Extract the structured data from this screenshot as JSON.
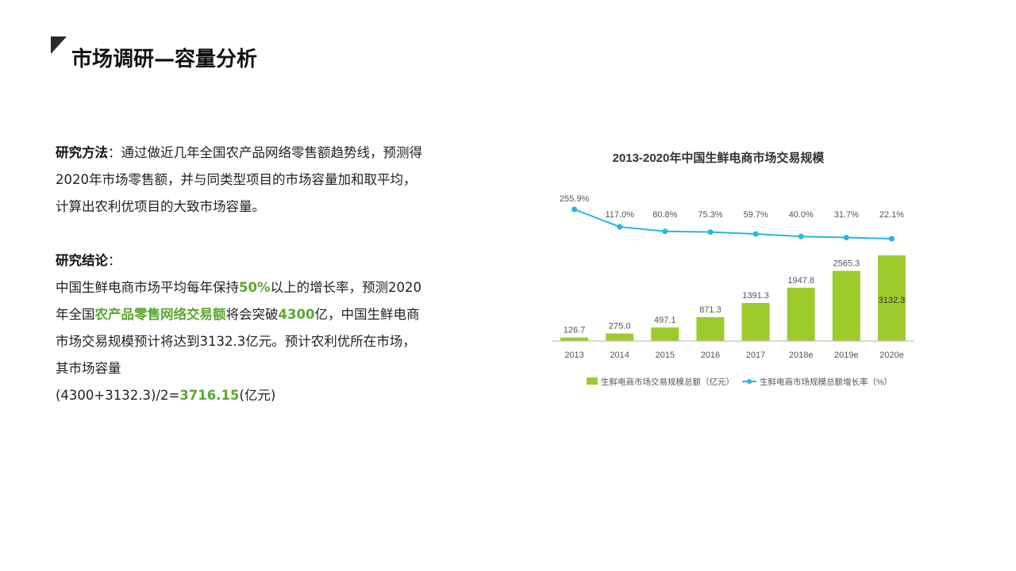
{
  "page": {
    "title": "市场调研—容量分析"
  },
  "method": {
    "label": "研究方法",
    "sep": "：",
    "text": "通过做近几年全国农产品网络零售额趋势线，预测得2020年市场零售额，并与同类型项目的市场容量加和取平均，计算出农利优项目的大致市场容量。"
  },
  "conclusion": {
    "label": "研究结论",
    "sep": "：",
    "t1": "中国生鲜电商市场平均每年保持",
    "h1": "50%",
    "t2": "以上的增长率，预测2020年全国",
    "h2": "农产品零售网络交易额",
    "t3": "将会突破",
    "h3": "4300",
    "t4": "亿，中国生鲜电商市场交易规模预计将达到3132.3亿元。预计农利优所在市场，其市场容量",
    "formula": "(4300+3132.3)/2=",
    "h4": "3716.15",
    "t5": "(亿元)"
  },
  "colors": {
    "highlight": "#5aa82e",
    "bar": "#9dcb2c",
    "line": "#22b6e6",
    "axis": "#bfbfbf",
    "label": "#555555"
  },
  "chart_data": {
    "type": "bar",
    "title": "2013-2020年中国生鲜电商市场交易规模",
    "categories": [
      "2013",
      "2014",
      "2015",
      "2016",
      "2017",
      "2018e",
      "2019e",
      "2020e"
    ],
    "series": [
      {
        "name": "生鲜电商市场交易规模总额（亿元）",
        "type": "bar",
        "values": [
          126.7,
          275.0,
          497.1,
          871.3,
          1391.3,
          1947.8,
          2565.3,
          3132.3
        ],
        "labels": [
          "126.7",
          "275.0",
          "497.1",
          "871.3",
          "1391.3",
          "1947.8",
          "2565.3",
          "3132.3"
        ]
      },
      {
        "name": "生鲜电商市场规模总额增长率（%）",
        "type": "line",
        "values": [
          255.9,
          117.0,
          80.8,
          75.3,
          59.7,
          40.0,
          31.7,
          22.1
        ],
        "labels": [
          "255.9%",
          "117.0%",
          "80.8%",
          "75.3%",
          "59.7%",
          "40.0%",
          "31.7%",
          "22.1%"
        ]
      }
    ],
    "legend_position": "bottom"
  }
}
